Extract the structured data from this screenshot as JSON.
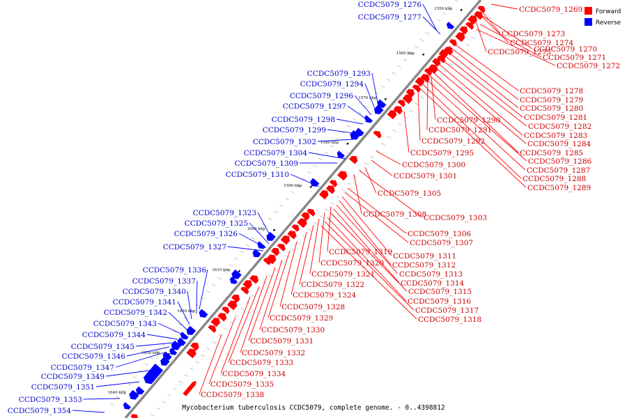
{
  "caption": "Mycobacterium tuberculosis CCDC5079, complete genome. - 0..4398812",
  "legend": [
    {
      "label": "Forward",
      "color": "#ff0000"
    },
    {
      "label": "Reverse",
      "color": "#0000ff"
    }
  ],
  "colors": {
    "forward": "#ff0000",
    "reverse": "#0000ff",
    "label_forward": "#cc0000",
    "label_reverse": "#0000cc",
    "backbone": "#888888"
  },
  "kbp_ticks": [
    "1550 kbp",
    "1560 kbp",
    "1570 kbp",
    "1580 kbp",
    "1590 kbp",
    "1600 kbp",
    "1610 kbp",
    "1620 kbp",
    "1630 kbp",
    "1640 kbp"
  ],
  "forward_genes": [
    "CCDC5079_1269",
    "CCDC5079_1273",
    "CCDC5079_1274",
    "CCDC5079_1270",
    "CCDC5079_1275",
    "CCDC5079_1271",
    "CCDC5079_1272",
    "CCDC5079_1278",
    "CCDC5079_1279",
    "CCDC5079_1280",
    "CCDC5079_1281",
    "CCDC5079_1290",
    "CCDC5079_1282",
    "CCDC5079_1291",
    "CCDC5079_1283",
    "CCDC5079_1292",
    "CCDC5079_1284",
    "CCDC5079_1285",
    "CCDC5079_1295",
    "CCDC5079_1286",
    "CCDC5079_1287",
    "CCDC5079_1300",
    "CCDC5079_1288",
    "CCDC5079_1301",
    "CCDC5079_1289",
    "CCDC5079_1305",
    "CCDC5079_1308",
    "CCDC5079_1303",
    "CCDC5079_1306",
    "CCDC5079_1307",
    "CCDC5079_1319",
    "CCDC5079_1311",
    "CCDC5079_1320",
    "CCDC5079_1312",
    "CCDC5079_1321",
    "CCDC5079_1313",
    "CCDC5079_1322",
    "CCDC5079_1314",
    "CCDC5079_1315",
    "CCDC5079_1324",
    "CCDC5079_1316",
    "CCDC5079_1328",
    "CCDC5079_1317",
    "CCDC5079_1318",
    "CCDC5079_1329",
    "CCDC5079_1330",
    "CCDC5079_1331",
    "CCDC5079_1332",
    "CCDC5079_1333",
    "CCDC5079_1334",
    "CCDC5079_1335",
    "CCDC5079_1338"
  ],
  "reverse_genes": [
    "CCDC5079_1276",
    "CCDC5079_1277",
    "CCDC5079_1293",
    "CCDC5079_1294",
    "CCDC5079_1296",
    "CCDC5079_1297",
    "CCDC5079_1298",
    "CCDC5079_1299",
    "CCDC5079_1302",
    "CCDC5079_1304",
    "CCDC5079_1309",
    "CCDC5079_1310",
    "CCDC5079_1323",
    "CCDC5079_1325",
    "CCDC5079_1326",
    "CCDC5079_1327",
    "CCDC5079_1336",
    "CCDC5079_1337",
    "CCDC5079_1340",
    "CCDC5079_1341",
    "CCDC5079_1342",
    "CCDC5079_1343",
    "CCDC5079_1344",
    "CCDC5079_1345",
    "CCDC5079_1346",
    "CCDC5079_1347",
    "CCDC5079_1349",
    "CCDC5079_1351",
    "CCDC5079_1353",
    "CCDC5079_1354"
  ]
}
